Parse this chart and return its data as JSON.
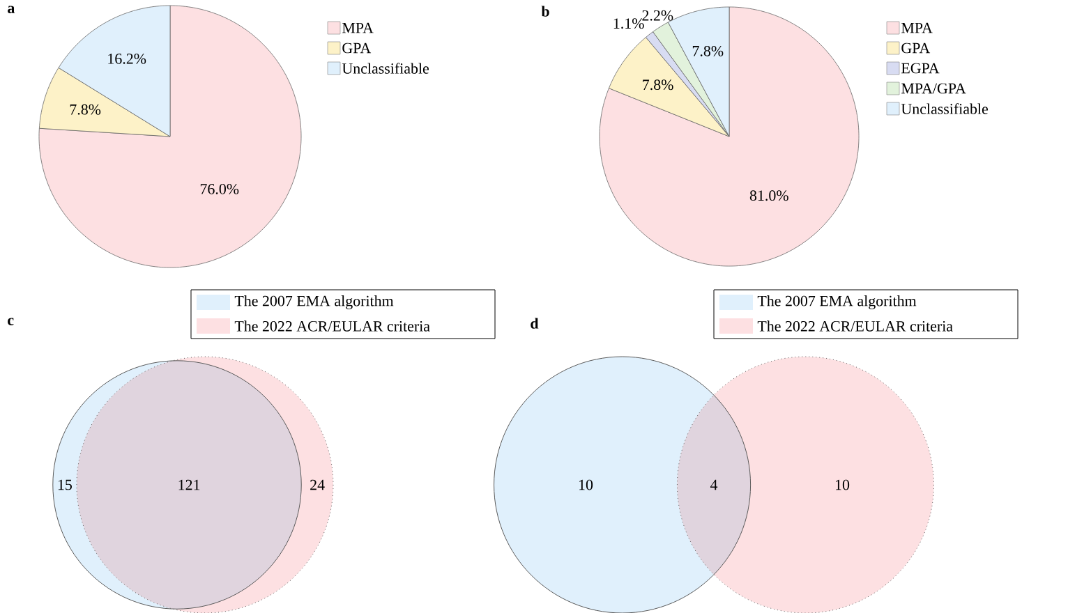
{
  "chart_data": [
    {
      "type": "pie",
      "title": "a",
      "categories": [
        "MPA",
        "GPA",
        "Unclassifiable"
      ],
      "values": [
        76.0,
        7.8,
        16.2
      ],
      "value_labels": [
        "76.0%",
        "7.8%",
        "16.2%"
      ],
      "colors": [
        "#fde0e2",
        "#fdf2c8",
        "#e0f0fc"
      ],
      "legend": "right"
    },
    {
      "type": "pie",
      "title": "b",
      "categories": [
        "MPA",
        "GPA",
        "EGPA",
        "MPA/GPA",
        "Unclassifiable"
      ],
      "values": [
        81.0,
        7.8,
        1.1,
        2.2,
        7.8
      ],
      "value_labels": [
        "81.0%",
        "7.8%",
        "1.1%",
        "2.2%",
        "7.8%"
      ],
      "colors": [
        "#fde0e2",
        "#fdf2c8",
        "#d8dcf2",
        "#e2f2dc",
        "#e0f0fc"
      ],
      "legend": "right"
    },
    {
      "type": "other",
      "title": "c",
      "categories": [
        null,
        null,
        null
      ],
      "values": [
        15,
        121,
        24
      ],
      "value_labels": [
        "15",
        "121",
        "24"
      ],
      "colors": [
        "#e0f0fc",
        "#e0d4de",
        "#fde0e2"
      ],
      "annotations": [
        "The 2007 EMA algorithm",
        "The 2022 ACR/EULAR criteria"
      ]
    },
    {
      "type": "other",
      "title": "d",
      "categories": [
        null,
        null,
        null
      ],
      "values": [
        10,
        4,
        10
      ],
      "value_labels": [
        "10",
        "4",
        "10"
      ],
      "colors": [
        "#e0f0fc",
        "#e0d4de",
        "#fde0e2"
      ],
      "annotations": [
        "The 2007 EMA algorithm",
        "The 2022 ACR/EULAR criteria"
      ]
    }
  ]
}
